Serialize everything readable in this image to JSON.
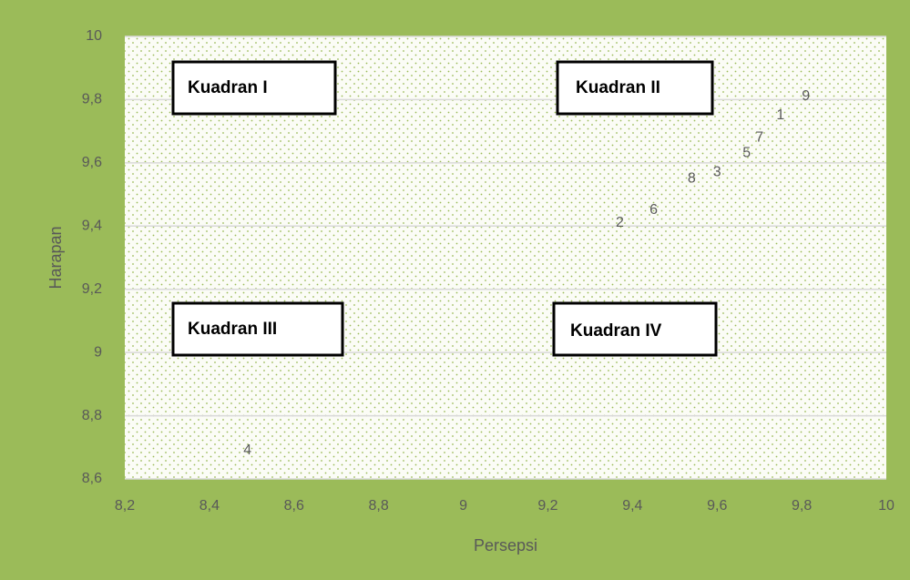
{
  "chart_data": {
    "type": "scatter",
    "x_label": "Persepsi",
    "y_label": "Harapan",
    "labels": [
      "1",
      "2",
      "3",
      "4",
      "5",
      "6",
      "7",
      "8",
      "9"
    ],
    "x": [
      9.75,
      9.37,
      9.6,
      8.49,
      9.67,
      9.45,
      9.7,
      9.54,
      9.81
    ],
    "values": [
      9.75,
      9.41,
      9.57,
      8.69,
      9.63,
      9.45,
      9.68,
      9.55,
      9.81
    ],
    "xlim": [
      8.2,
      10
    ],
    "ylim": [
      8.6,
      10
    ],
    "xticks": [
      {
        "value": 8.2,
        "label": "8,2"
      },
      {
        "value": 8.4,
        "label": "8,4"
      },
      {
        "value": 8.6,
        "label": "8,6"
      },
      {
        "value": 8.8,
        "label": "8,8"
      },
      9,
      {
        "value": 9.2,
        "label": "9,2"
      },
      {
        "value": 9.4,
        "label": "9,4"
      },
      {
        "value": 9.6,
        "label": "9,6"
      },
      {
        "value": 9.8,
        "label": "9,8"
      },
      10
    ],
    "yticks": [
      {
        "value": 8.6,
        "label": "8,6"
      },
      {
        "value": 8.8,
        "label": "8,8"
      },
      9,
      {
        "value": 9.2,
        "label": "9,2"
      },
      {
        "value": 9.4,
        "label": "9,4"
      },
      {
        "value": 9.6,
        "label": "9,6"
      },
      {
        "value": 9.8,
        "label": "9,8"
      },
      10
    ],
    "grid": true,
    "annotations": [
      "Kuadran I",
      "Kuadran II",
      "Kuadran III",
      "Kuadran IV"
    ]
  }
}
